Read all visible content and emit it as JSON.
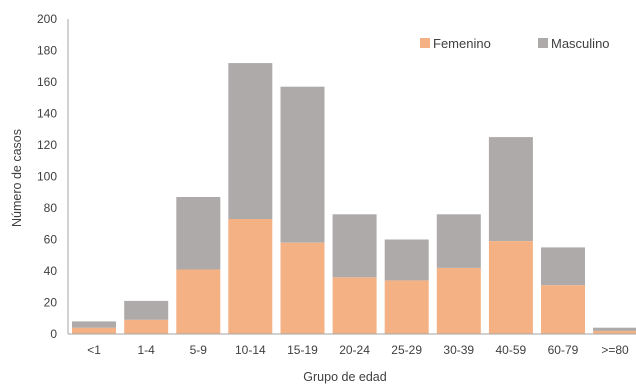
{
  "chart_data": {
    "type": "bar",
    "stacked": true,
    "categories": [
      "<1",
      "1-4",
      "5-9",
      "10-14",
      "15-19",
      "20-24",
      "25-29",
      "30-39",
      "40-59",
      "60-79",
      ">=80"
    ],
    "series": [
      {
        "name": "Femenino",
        "color": "#f4b183",
        "values": [
          4,
          9,
          41,
          73,
          58,
          36,
          34,
          42,
          59,
          31,
          2
        ]
      },
      {
        "name": "Masculino",
        "color": "#aeaaaa",
        "values": [
          4,
          12,
          46,
          99,
          99,
          40,
          26,
          34,
          66,
          24,
          2
        ]
      }
    ],
    "xlabel": "Grupo de edad",
    "ylabel": "Número de casos",
    "ylim": [
      0,
      200
    ],
    "yticks": [
      0,
      20,
      40,
      60,
      80,
      100,
      120,
      140,
      160,
      180,
      200
    ],
    "grid": false,
    "legend_position": "top-right"
  }
}
